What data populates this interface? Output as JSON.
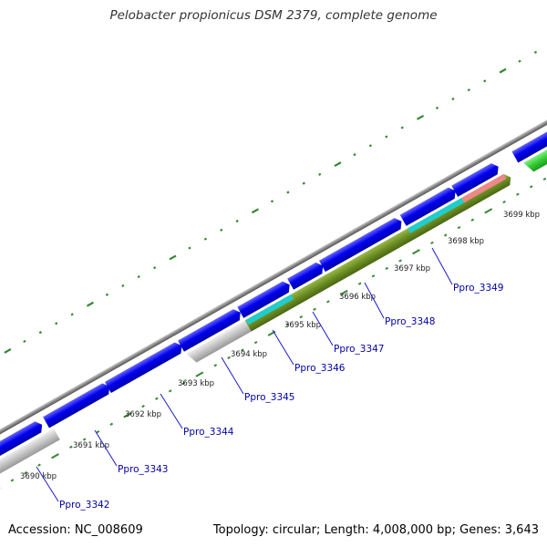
{
  "title": "Pelobacter propionicus DSM 2379, complete genome",
  "footer": {
    "accession": "Accession: NC_008609",
    "topology": "Topology: circular; Length: 4,008,000 bp; Genes: 3,643"
  },
  "colors": {
    "forward_cds": "#0000ee",
    "reverse_cds": "#bbbbbb",
    "olive_feature": "#6b8e23",
    "cyan_feature": "#22cccc",
    "pink_feature": "#ee8888",
    "green_cds": "#33cc33",
    "backbone": "#888888",
    "tick": "#338833",
    "locus_label": "#0000aa"
  },
  "scale_labels": [
    "3690 kbp",
    "3691 kbp",
    "3692 kbp",
    "3693 kbp",
    "3694 kbp",
    "3695 kbp",
    "3696 kbp",
    "3697 kbp",
    "3698 kbp",
    "3699 kbp"
  ],
  "locus_tags": [
    "Ppro_3342",
    "Ppro_3343",
    "Ppro_3344",
    "Ppro_3345",
    "Ppro_3346",
    "Ppro_3347",
    "Ppro_3348",
    "Ppro_3349"
  ]
}
